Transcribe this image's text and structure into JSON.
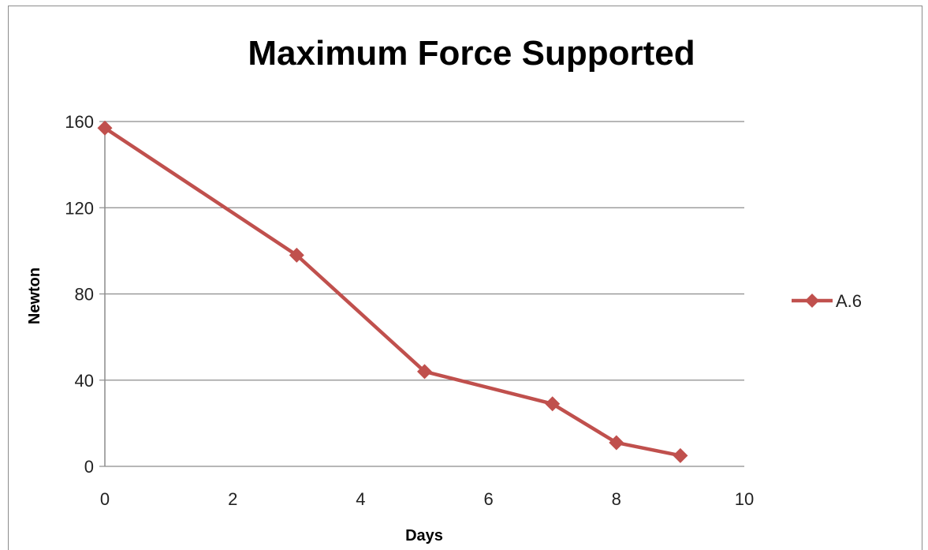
{
  "chart_data": {
    "type": "line",
    "title": "Maximum Force Supported",
    "xlabel": "Days",
    "ylabel": "Newton",
    "xlim": [
      0,
      10
    ],
    "ylim": [
      0,
      160
    ],
    "x_ticks": [
      0,
      2,
      4,
      6,
      8,
      10
    ],
    "y_ticks": [
      0,
      40,
      80,
      120,
      160
    ],
    "grid": "horizontal",
    "legend_position": "right",
    "series": [
      {
        "name": "A.6",
        "color": "#c0504d",
        "marker": "diamond",
        "x": [
          0,
          3,
          5,
          7,
          8,
          9
        ],
        "y": [
          157,
          98,
          44,
          29,
          11,
          5
        ]
      }
    ]
  }
}
